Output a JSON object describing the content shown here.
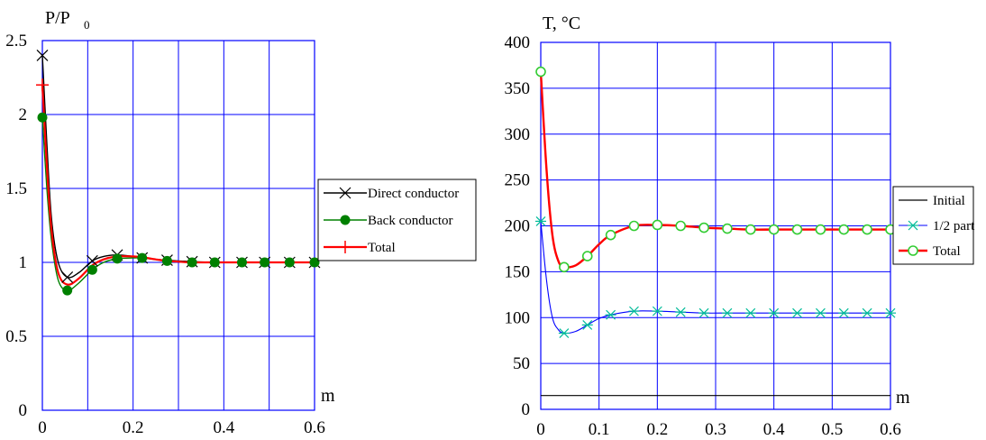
{
  "chart_data": [
    {
      "type": "line",
      "ylabel": "P/P",
      "ylabel_sub": "0",
      "xunit": "m",
      "xlim": [
        0,
        0.6
      ],
      "ylim": [
        0,
        2.5
      ],
      "xticks": [
        "0",
        "0.2",
        "0.4",
        "0.6"
      ],
      "yticks": [
        "0",
        "0.5",
        "1",
        "1.5",
        "2",
        "2.5"
      ],
      "grid": true,
      "legend_position": "right",
      "series": [
        {
          "name": "Direct conductor",
          "color": "#000000",
          "marker": "x",
          "x": [
            0,
            0.01,
            0.02,
            0.035,
            0.055,
            0.08,
            0.11,
            0.135,
            0.165,
            0.2,
            0.22,
            0.25,
            0.275,
            0.3,
            0.33,
            0.38,
            0.44,
            0.49,
            0.545,
            0.6
          ],
          "y": [
            2.4,
            1.8,
            1.3,
            1.0,
            0.9,
            0.93,
            1.01,
            1.04,
            1.05,
            1.04,
            1.03,
            1.02,
            1.015,
            1.01,
            1.005,
            1.0,
            1.0,
            1.0,
            1.0,
            1.0
          ],
          "marker_x": [
            0,
            0.055,
            0.11,
            0.165,
            0.22,
            0.275,
            0.33,
            0.38,
            0.44,
            0.49,
            0.545,
            0.6
          ]
        },
        {
          "name": "Back conductor",
          "color": "#008000",
          "marker": "dot",
          "x": [
            0,
            0.01,
            0.02,
            0.035,
            0.055,
            0.08,
            0.11,
            0.135,
            0.165,
            0.2,
            0.22,
            0.25,
            0.275,
            0.3,
            0.33,
            0.38,
            0.44,
            0.49,
            0.545,
            0.6
          ],
          "y": [
            1.98,
            1.5,
            1.15,
            0.88,
            0.81,
            0.86,
            0.95,
            1.0,
            1.025,
            1.03,
            1.03,
            1.02,
            1.01,
            1.005,
            1.0,
            1.0,
            1.0,
            1.0,
            1.0,
            1.0
          ],
          "marker_x": [
            0,
            0.055,
            0.11,
            0.165,
            0.22,
            0.275,
            0.33,
            0.38,
            0.44,
            0.49,
            0.545,
            0.6
          ]
        },
        {
          "name": "Total",
          "color": "#ff0000",
          "marker": "plus",
          "x": [
            0,
            0.01,
            0.02,
            0.035,
            0.055,
            0.08,
            0.11,
            0.135,
            0.165,
            0.2,
            0.22,
            0.25,
            0.275,
            0.3,
            0.33,
            0.38,
            0.44,
            0.49,
            0.545,
            0.6
          ],
          "y": [
            2.2,
            1.65,
            1.22,
            0.93,
            0.85,
            0.89,
            0.98,
            1.02,
            1.04,
            1.04,
            1.035,
            1.02,
            1.01,
            1.005,
            1.0,
            1.0,
            1.0,
            1.0,
            1.0,
            1.0
          ],
          "marker_x": [
            0
          ]
        }
      ]
    },
    {
      "type": "line",
      "ylabel": "T, °C",
      "xunit": "m",
      "xlim": [
        0,
        0.6
      ],
      "ylim": [
        0,
        400
      ],
      "xticks": [
        "0",
        "0.1",
        "0.2",
        "0.3",
        "0.4",
        "0.5",
        "0.6"
      ],
      "yticks": [
        "0",
        "50",
        "100",
        "150",
        "200",
        "250",
        "300",
        "350",
        "400"
      ],
      "grid": true,
      "legend_position": "right",
      "series": [
        {
          "name": "Initial",
          "color": "#000000",
          "marker": "none",
          "x": [
            0,
            0.6
          ],
          "y": [
            15,
            15
          ]
        },
        {
          "name": "1/2 part",
          "color": "#0000ff",
          "marker_color": "#00bb99",
          "marker": "star",
          "x": [
            0,
            0.01,
            0.02,
            0.03,
            0.04,
            0.06,
            0.08,
            0.1,
            0.12,
            0.16,
            0.2,
            0.24,
            0.28,
            0.32,
            0.36,
            0.4,
            0.44,
            0.48,
            0.52,
            0.56,
            0.6
          ],
          "y": [
            205,
            140,
            100,
            87,
            83,
            85,
            92,
            99,
            103,
            107,
            107,
            106,
            105,
            105,
            105,
            105,
            105,
            105,
            105,
            105,
            105
          ],
          "marker_x": [
            0,
            0.04,
            0.08,
            0.12,
            0.16,
            0.2,
            0.24,
            0.28,
            0.32,
            0.36,
            0.4,
            0.44,
            0.48,
            0.52,
            0.56,
            0.6
          ]
        },
        {
          "name": "Total",
          "color": "#ff0000",
          "marker_color": "#33cc33",
          "marker": "circle",
          "x": [
            0,
            0.01,
            0.02,
            0.03,
            0.04,
            0.06,
            0.08,
            0.1,
            0.12,
            0.16,
            0.2,
            0.24,
            0.28,
            0.32,
            0.36,
            0.4,
            0.44,
            0.48,
            0.52,
            0.56,
            0.6
          ],
          "y": [
            368,
            260,
            190,
            162,
            155,
            157,
            167,
            180,
            190,
            200,
            201,
            200,
            198,
            197,
            196,
            196,
            196,
            196,
            196,
            196,
            196
          ],
          "marker_x": [
            0,
            0.04,
            0.08,
            0.12,
            0.16,
            0.2,
            0.24,
            0.28,
            0.32,
            0.36,
            0.4,
            0.44,
            0.48,
            0.52,
            0.56,
            0.6
          ]
        }
      ]
    }
  ]
}
